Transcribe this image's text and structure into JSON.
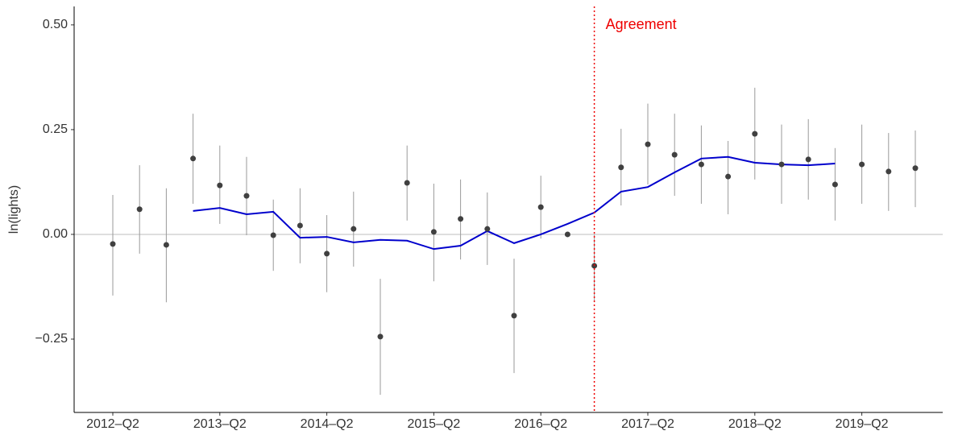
{
  "chart_data": {
    "type": "pointrange",
    "ylabel": "ln(lights)",
    "categories": [
      "2012–Q2",
      null,
      null,
      null,
      "2013–Q2",
      null,
      null,
      null,
      "2014–Q2",
      null,
      null,
      null,
      "2015–Q2",
      null,
      null,
      null,
      "2016–Q2",
      null,
      null,
      null,
      "2017–Q2",
      null,
      null,
      null,
      "2018–Q2",
      null,
      null,
      null,
      "2019–Q2",
      null,
      null
    ],
    "ylim": [
      -0.425,
      0.544
    ],
    "yticks": [
      {
        "value": -0.25,
        "label": "−0.25"
      },
      {
        "value": 0,
        "label": "0.00"
      },
      {
        "value": 0.25,
        "label": "0.25"
      },
      {
        "value": 0.5,
        "label": "0.50"
      }
    ],
    "hline": 0,
    "estimates": {
      "color": "#404040",
      "error_color": "#9a9a9a",
      "values": [
        -0.023,
        0.06,
        -0.025,
        0.181,
        0.117,
        0.092,
        -0.002,
        0.021,
        -0.046,
        0.013,
        -0.244,
        0.123,
        0.006,
        0.037,
        0.013,
        -0.194,
        0.065,
        0.0,
        -0.075,
        0.16,
        0.215,
        0.19,
        0.167,
        0.138,
        0.24,
        0.167,
        0.179,
        0.119,
        0.167,
        0.15,
        0.158
      ],
      "lower": [
        -0.146,
        -0.046,
        -0.162,
        0.073,
        0.025,
        -0.002,
        -0.087,
        -0.069,
        -0.138,
        -0.077,
        -0.383,
        0.033,
        -0.112,
        -0.06,
        -0.073,
        -0.331,
        -0.01,
        null,
        -0.162,
        0.069,
        0.119,
        0.092,
        0.073,
        0.048,
        0.131,
        0.073,
        0.083,
        0.033,
        0.073,
        0.056,
        0.065
      ],
      "upper": [
        0.094,
        0.165,
        0.11,
        0.288,
        0.212,
        0.185,
        0.083,
        0.11,
        0.046,
        0.102,
        -0.106,
        0.212,
        0.121,
        0.131,
        0.1,
        -0.058,
        0.14,
        null,
        0.0,
        0.252,
        0.312,
        0.288,
        0.26,
        0.223,
        0.35,
        0.262,
        0.275,
        0.206,
        0.262,
        0.242,
        0.248
      ]
    },
    "trend": {
      "color": "#0000cc",
      "values": [
        null,
        null,
        null,
        0.056,
        0.063,
        0.048,
        0.054,
        -0.008,
        -0.006,
        -0.019,
        -0.013,
        -0.015,
        -0.035,
        -0.027,
        0.008,
        -0.021,
        0.0,
        0.025,
        0.052,
        0.102,
        0.113,
        0.148,
        0.181,
        0.185,
        0.171,
        0.167,
        0.165,
        0.169,
        null,
        null,
        null
      ]
    },
    "annotation": {
      "text": "Agreement",
      "index": 18,
      "color": "#ee0000"
    }
  }
}
